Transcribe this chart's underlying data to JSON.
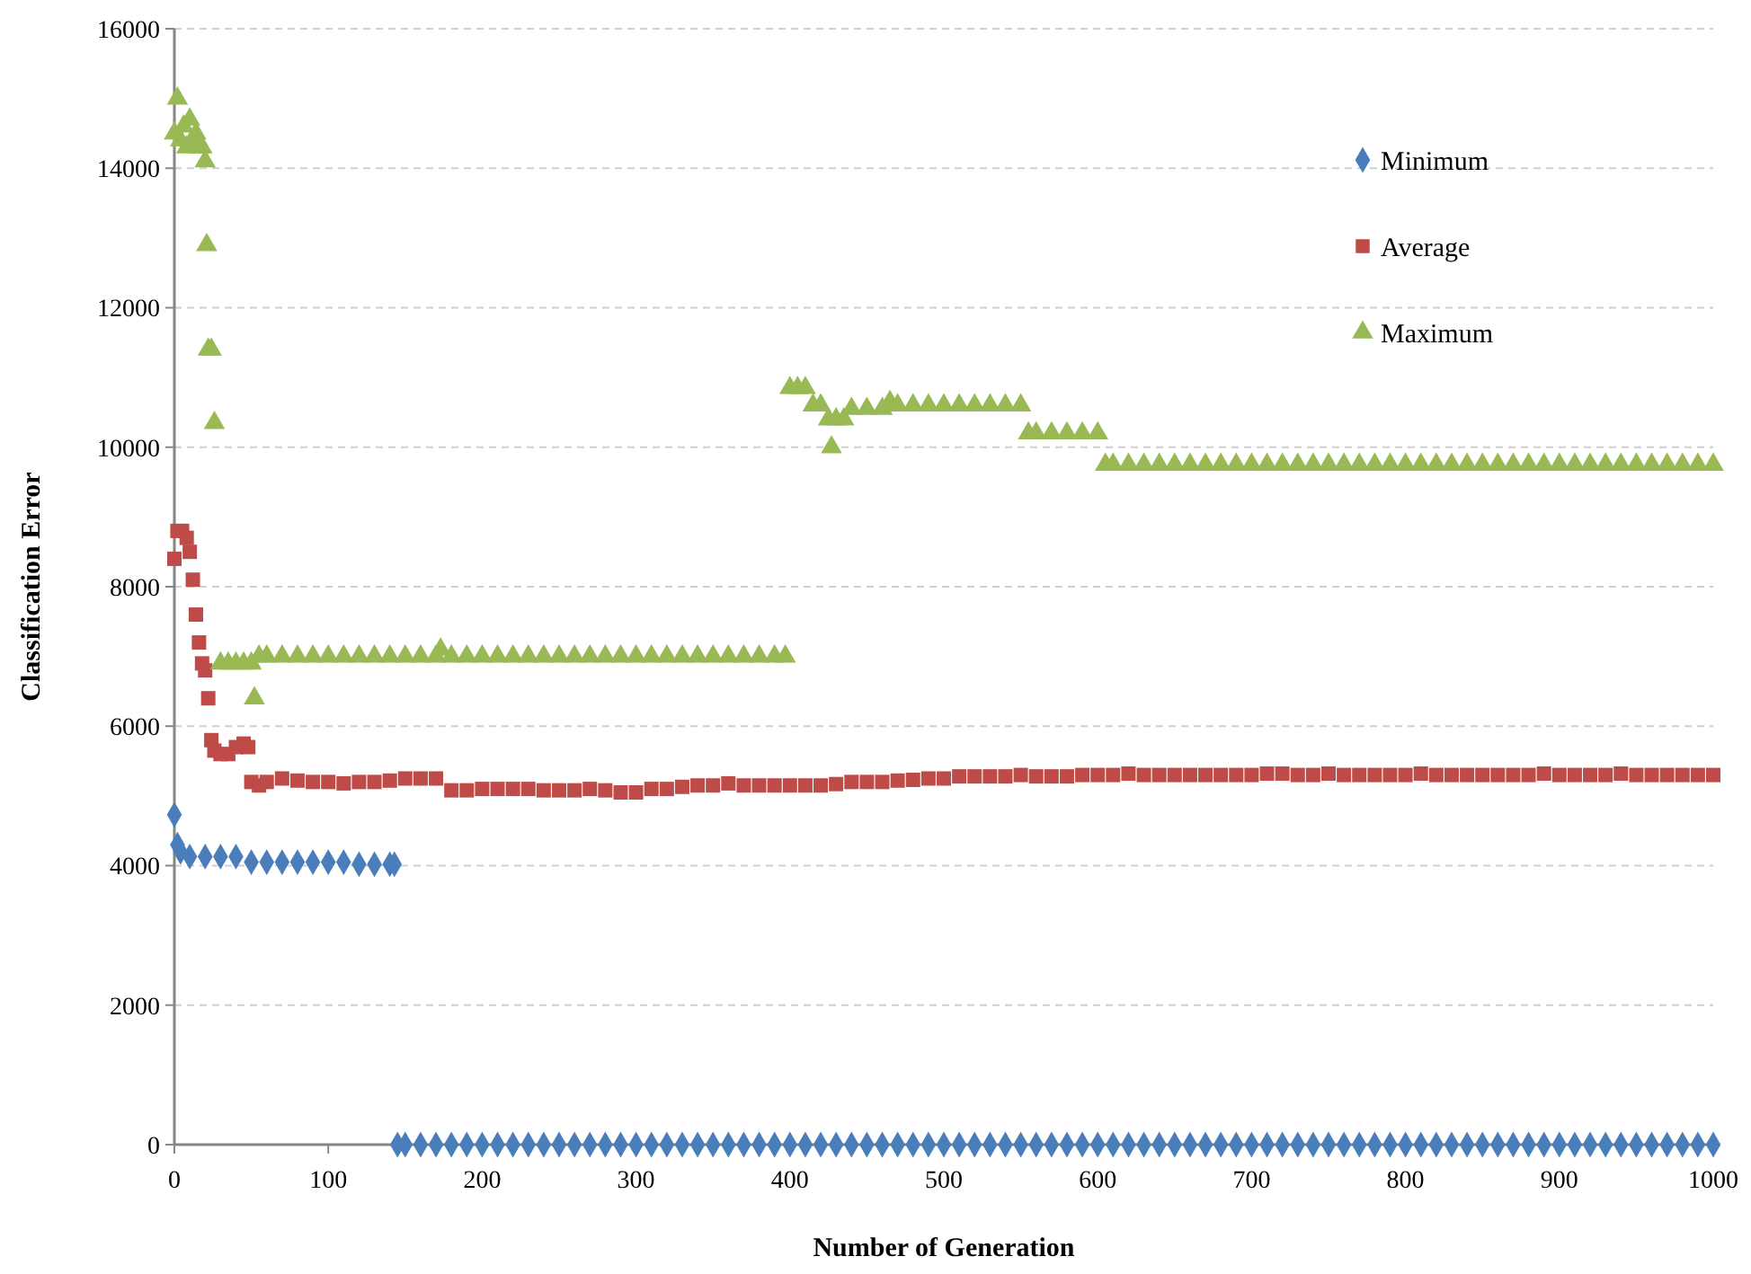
{
  "chart_data": {
    "type": "scatter",
    "xlabel": "Number of Generation",
    "ylabel": "Classification Error",
    "xlim": [
      0,
      1000
    ],
    "xticks": [
      0,
      100,
      200,
      300,
      400,
      500,
      600,
      700,
      800,
      900,
      1000
    ],
    "ylim": [
      0,
      16000
    ],
    "yticks": [
      0,
      2000,
      4000,
      6000,
      8000,
      10000,
      12000,
      14000,
      16000
    ],
    "grid": "y",
    "legend": "top right",
    "series": [
      {
        "name": "Minimum",
        "color": "#4a7ebb",
        "marker": "diamond",
        "x": [
          0,
          2,
          4,
          10,
          20,
          30,
          40,
          50,
          60,
          70,
          80,
          90,
          100,
          110,
          120,
          130,
          140,
          143,
          145,
          150,
          160,
          170,
          180,
          190,
          200,
          210,
          220,
          230,
          240,
          250,
          260,
          270,
          280,
          290,
          300,
          310,
          320,
          330,
          340,
          350,
          360,
          370,
          380,
          390,
          400,
          410,
          420,
          430,
          440,
          450,
          460,
          470,
          480,
          490,
          500,
          510,
          520,
          530,
          540,
          550,
          560,
          570,
          580,
          590,
          600,
          610,
          620,
          630,
          640,
          650,
          660,
          670,
          680,
          690,
          700,
          710,
          720,
          730,
          740,
          750,
          760,
          770,
          780,
          790,
          800,
          810,
          820,
          830,
          840,
          850,
          860,
          870,
          880,
          890,
          900,
          910,
          920,
          930,
          940,
          950,
          960,
          970,
          980,
          990,
          1000
        ],
        "values": [
          4730,
          4300,
          4200,
          4130,
          4130,
          4130,
          4130,
          4050,
          4050,
          4050,
          4050,
          4050,
          4050,
          4050,
          4020,
          4020,
          4020,
          4020,
          0,
          0,
          0,
          0,
          0,
          0,
          0,
          0,
          0,
          0,
          0,
          0,
          0,
          0,
          0,
          0,
          0,
          0,
          0,
          0,
          0,
          0,
          0,
          0,
          0,
          0,
          0,
          0,
          0,
          0,
          0,
          0,
          0,
          0,
          0,
          0,
          0,
          0,
          0,
          0,
          0,
          0,
          0,
          0,
          0,
          0,
          0,
          0,
          0,
          0,
          0,
          0,
          0,
          0,
          0,
          0,
          0,
          0,
          0,
          0,
          0,
          0,
          0,
          0,
          0,
          0,
          0,
          0,
          0,
          0,
          0,
          0,
          0,
          0,
          0,
          0,
          0,
          0,
          0,
          0,
          0,
          0,
          0,
          0,
          0,
          0,
          0
        ]
      },
      {
        "name": "Average",
        "color": "#be4b48",
        "marker": "square",
        "x": [
          0,
          2,
          5,
          8,
          10,
          12,
          14,
          16,
          18,
          20,
          22,
          24,
          26,
          30,
          35,
          40,
          45,
          48,
          50,
          55,
          60,
          70,
          80,
          90,
          100,
          110,
          120,
          130,
          140,
          150,
          160,
          170,
          180,
          190,
          200,
          210,
          220,
          230,
          240,
          250,
          260,
          270,
          280,
          290,
          300,
          310,
          320,
          330,
          340,
          350,
          360,
          370,
          380,
          390,
          400,
          410,
          420,
          430,
          440,
          450,
          460,
          470,
          480,
          490,
          500,
          510,
          520,
          530,
          540,
          550,
          560,
          570,
          580,
          590,
          600,
          610,
          620,
          630,
          640,
          650,
          660,
          670,
          680,
          690,
          700,
          710,
          720,
          730,
          740,
          750,
          760,
          770,
          780,
          790,
          800,
          810,
          820,
          830,
          840,
          850,
          860,
          870,
          880,
          890,
          900,
          910,
          920,
          930,
          940,
          950,
          960,
          970,
          980,
          990,
          1000
        ],
        "values": [
          8400,
          8800,
          8800,
          8700,
          8500,
          8100,
          7600,
          7200,
          6900,
          6800,
          6400,
          5800,
          5650,
          5600,
          5600,
          5700,
          5750,
          5700,
          5200,
          5150,
          5200,
          5250,
          5220,
          5200,
          5200,
          5180,
          5200,
          5200,
          5220,
          5250,
          5250,
          5250,
          5080,
          5080,
          5100,
          5100,
          5100,
          5100,
          5080,
          5080,
          5080,
          5100,
          5080,
          5050,
          5050,
          5100,
          5100,
          5130,
          5150,
          5150,
          5180,
          5150,
          5150,
          5150,
          5150,
          5150,
          5150,
          5170,
          5200,
          5200,
          5200,
          5220,
          5230,
          5250,
          5250,
          5280,
          5280,
          5280,
          5280,
          5300,
          5280,
          5280,
          5280,
          5300,
          5300,
          5300,
          5320,
          5300,
          5300,
          5300,
          5300,
          5300,
          5300,
          5300,
          5300,
          5320,
          5320,
          5300,
          5300,
          5320,
          5300,
          5300,
          5300,
          5300,
          5300,
          5320,
          5300,
          5300,
          5300,
          5300,
          5300,
          5300,
          5300,
          5320,
          5300,
          5300,
          5300,
          5300,
          5320,
          5300,
          5300,
          5300,
          5300,
          5300,
          5300
        ]
      },
      {
        "name": "Maximum",
        "color": "#98b954",
        "marker": "triangle",
        "x": [
          0,
          2,
          4,
          6,
          8,
          10,
          12,
          14,
          16,
          18,
          20,
          21,
          22,
          24,
          26,
          30,
          35,
          40,
          45,
          50,
          52,
          55,
          60,
          70,
          80,
          90,
          100,
          110,
          120,
          130,
          140,
          150,
          160,
          170,
          173,
          180,
          190,
          200,
          210,
          220,
          230,
          240,
          250,
          260,
          270,
          280,
          290,
          300,
          310,
          320,
          330,
          340,
          350,
          360,
          370,
          380,
          390,
          397,
          400,
          405,
          410,
          415,
          420,
          425,
          427,
          430,
          435,
          440,
          450,
          460,
          465,
          470,
          480,
          490,
          500,
          510,
          520,
          530,
          540,
          550,
          555,
          560,
          570,
          580,
          590,
          600,
          605,
          610,
          620,
          630,
          640,
          650,
          660,
          670,
          680,
          690,
          700,
          710,
          720,
          730,
          740,
          750,
          760,
          770,
          780,
          790,
          800,
          810,
          820,
          830,
          840,
          850,
          860,
          870,
          880,
          890,
          900,
          910,
          920,
          930,
          940,
          950,
          960,
          970,
          980,
          990,
          1000
        ],
        "values": [
          14500,
          15000,
          14400,
          14600,
          14300,
          14700,
          14400,
          14500,
          14300,
          14300,
          14100,
          12900,
          11400,
          11400,
          10350,
          6900,
          6900,
          6900,
          6900,
          6900,
          6400,
          7000,
          7000,
          7000,
          7000,
          7000,
          7000,
          7000,
          7000,
          7000,
          7000,
          7000,
          7000,
          7000,
          7100,
          7000,
          7000,
          7000,
          7000,
          7000,
          7000,
          7000,
          7000,
          7000,
          7000,
          7000,
          7000,
          7000,
          7000,
          7000,
          7000,
          7000,
          7000,
          7000,
          7000,
          7000,
          7000,
          7000,
          10850,
          10850,
          10850,
          10600,
          10600,
          10400,
          10000,
          10400,
          10400,
          10550,
          10550,
          10550,
          10650,
          10600,
          10600,
          10600,
          10600,
          10600,
          10600,
          10600,
          10600,
          10600,
          10200,
          10200,
          10200,
          10200,
          10200,
          10200,
          9750,
          9750,
          9750,
          9750,
          9750,
          9750,
          9750,
          9750,
          9750,
          9750,
          9750,
          9750,
          9750,
          9750,
          9750,
          9750,
          9750,
          9750,
          9750,
          9750,
          9750,
          9750,
          9750,
          9750,
          9750,
          9750,
          9750,
          9750,
          9750,
          9750,
          9750,
          9750,
          9750,
          9750,
          9750,
          9750,
          9750,
          9750,
          9750,
          9750,
          9750
        ]
      }
    ]
  }
}
